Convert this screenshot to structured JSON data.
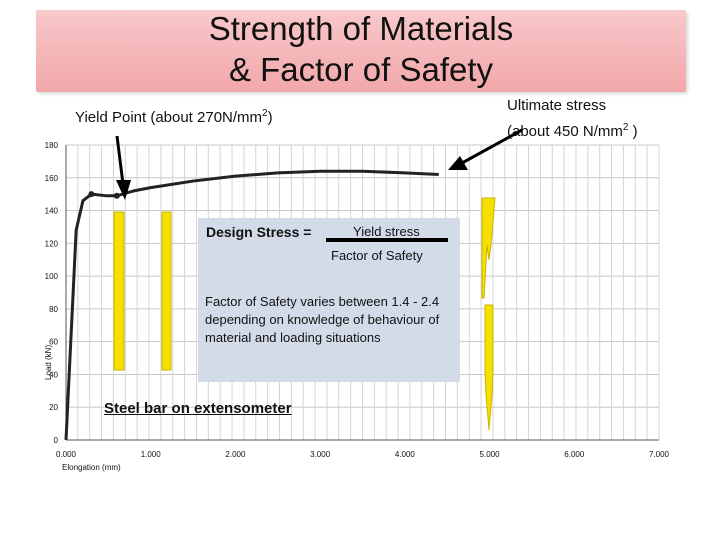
{
  "slide": {
    "title_line1": "Strength of Materials",
    "title_line2": "& Factor of Safety",
    "yield_point_label": "Yield Point (about 270N/mm",
    "yield_point_sup": "2",
    "yield_point_close": ")",
    "ultimate_line1": "Ultimate stress",
    "ultimate_line2": "(about 450 N/mm",
    "ultimate_sup": "2",
    "ultimate_close": " )",
    "design_stress_label": "Design Stress =",
    "fraction_numerator": "Yield stress",
    "fraction_denominator": "Factor of Safety",
    "factor_of_safety_text": "Factor of Safety varies between 1.4 - 2.4 depending on knowledge of behaviour of material and loading situations",
    "steel_bar_label": "Steel bar on extensometer",
    "accent_colors": {
      "title_bg": "#f2a7aa",
      "design_box": "#d3dbe8",
      "bar_yellow": "#f5e000"
    }
  },
  "chart_data": {
    "type": "line",
    "xlabel": "Elongation (mm)",
    "ylabel": "Load (kN)",
    "x_ticks": [
      "0.000",
      "1.000",
      "2.000",
      "3.000",
      "4.000",
      "5.000",
      "6.000",
      "7.000"
    ],
    "y_ticks": [
      "0",
      "20",
      "40",
      "60",
      "80",
      "100",
      "120",
      "140",
      "160",
      "180"
    ],
    "xlim": [
      0,
      7
    ],
    "ylim": [
      0,
      180
    ],
    "grid": true,
    "series": [
      {
        "x": [
          0,
          0.12,
          0.2,
          0.3,
          0.48,
          0.6,
          0.8,
          1.0,
          1.5,
          2.0,
          2.5,
          3.0,
          3.5,
          4.0,
          4.4
        ],
        "y": [
          0,
          128,
          146,
          150,
          149,
          149,
          152,
          154,
          158,
          161,
          163,
          164,
          164,
          163,
          162
        ]
      }
    ]
  }
}
